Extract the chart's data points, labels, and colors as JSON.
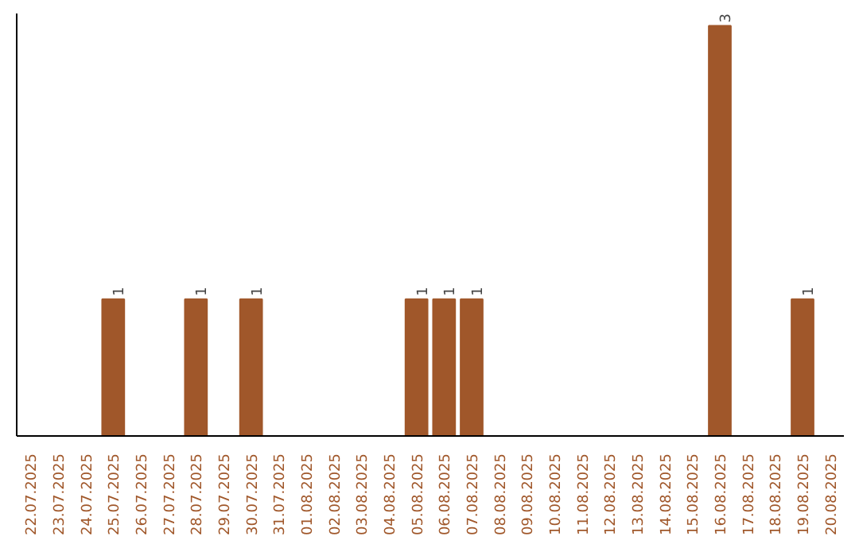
{
  "chart_data": {
    "type": "bar",
    "categories": [
      "22.07.2025",
      "23.07.2025",
      "24.07.2025",
      "25.07.2025",
      "26.07.2025",
      "27.07.2025",
      "28.07.2025",
      "29.07.2025",
      "30.07.2025",
      "31.07.2025",
      "01.08.2025",
      "02.08.2025",
      "03.08.2025",
      "04.08.2025",
      "05.08.2025",
      "06.08.2025",
      "07.08.2025",
      "08.08.2025",
      "09.08.2025",
      "10.08.2025",
      "11.08.2025",
      "12.08.2025",
      "13.08.2025",
      "14.08.2025",
      "15.08.2025",
      "16.08.2025",
      "17.08.2025",
      "18.08.2025",
      "19.08.2025",
      "20.08.2025"
    ],
    "values": [
      0,
      0,
      0,
      1,
      0,
      0,
      1,
      0,
      1,
      0,
      0,
      0,
      0,
      0,
      1,
      1,
      1,
      0,
      0,
      0,
      0,
      0,
      0,
      0,
      0,
      3,
      0,
      0,
      1,
      0
    ],
    "value_labels": [
      null,
      null,
      null,
      "1",
      null,
      null,
      "1",
      null,
      "1",
      null,
      null,
      null,
      null,
      null,
      "1",
      "1",
      "1",
      null,
      null,
      null,
      null,
      null,
      null,
      null,
      null,
      "3",
      null,
      null,
      "1",
      null
    ],
    "color": "#a0572a",
    "grid": false
  }
}
